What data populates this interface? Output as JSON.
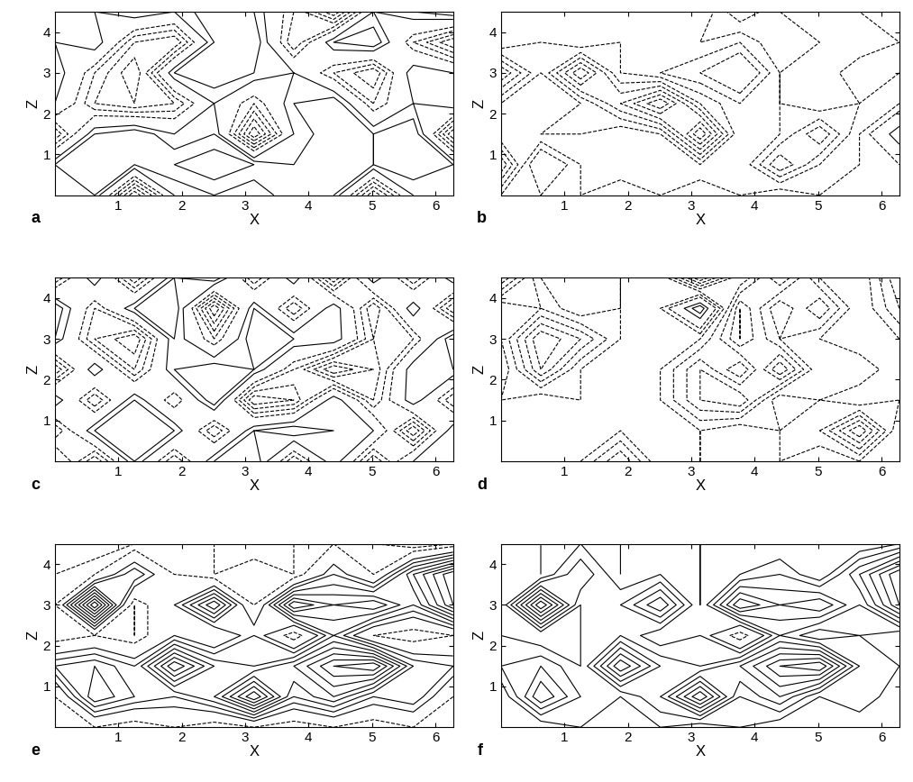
{
  "chart_data": [
    {
      "type": "contour",
      "title": "a",
      "xlabel": "X",
      "ylabel": "Z",
      "xlim": [
        0,
        6.28
      ],
      "ylim": [
        0,
        4.5
      ],
      "xticks": [
        1,
        2,
        3,
        4,
        5,
        6
      ],
      "yticks": [
        1,
        2,
        3,
        4
      ],
      "color": "#000000",
      "line_style": "dashed",
      "x": [
        0,
        0.628,
        1.256,
        1.884,
        2.512,
        3.14,
        3.768,
        4.396,
        5.024,
        5.652,
        6.28
      ],
      "y": [
        0,
        0.75,
        1.5,
        2.25,
        3.0,
        3.75,
        4.5
      ],
      "levels": [
        -0.9,
        -0.8,
        -0.7,
        -0.6,
        -0.5,
        -0.4,
        -0.3,
        -0.2,
        -0.1,
        0.1,
        0.2,
        0.3,
        0.4,
        0.5,
        0.6,
        0.7,
        0.8,
        0.9
      ],
      "values": [
        [
          0.1,
          0.2,
          -0.6,
          0.1,
          0.2,
          0.1,
          0.3,
          0.2,
          -0.5,
          0.1,
          0.2
        ],
        [
          0.2,
          0.3,
          0.2,
          0.3,
          0.4,
          0.3,
          0.2,
          0.3,
          0.2,
          0.3,
          0.2
        ],
        [
          -0.4,
          0.2,
          0.3,
          0.1,
          0.2,
          -0.6,
          0.1,
          0.3,
          0.2,
          0.3,
          -0.5
        ],
        [
          0.1,
          -0.3,
          -0.4,
          -0.3,
          0.1,
          -0.2,
          0.2,
          0.3,
          -0.2,
          0.1,
          0.2
        ],
        [
          0.2,
          -0.2,
          -0.5,
          0.2,
          0.3,
          0.2,
          0.1,
          -0.2,
          -0.4,
          0.2,
          0.1
        ],
        [
          0.1,
          0.2,
          -0.3,
          -0.4,
          0.2,
          0.3,
          -0.3,
          0.2,
          0.3,
          -0.2,
          -0.5
        ],
        [
          0.2,
          0.1,
          0.2,
          0.1,
          0.3,
          0.2,
          -0.2,
          -0.6,
          0.1,
          0.2,
          0.3
        ]
      ]
    },
    {
      "type": "contour",
      "title": "b",
      "xlabel": "X",
      "ylabel": "Z",
      "xlim": [
        0,
        6.28
      ],
      "ylim": [
        0,
        4.5
      ],
      "xticks": [
        1,
        2,
        3,
        4,
        5,
        6
      ],
      "yticks": [
        1,
        2,
        3,
        4
      ],
      "color": "#000000",
      "line_style": "dashed",
      "x": [
        0,
        0.628,
        1.256,
        1.884,
        2.512,
        3.14,
        3.768,
        4.396,
        5.024,
        5.652,
        6.28
      ],
      "y": [
        0,
        0.75,
        1.5,
        2.25,
        3.0,
        3.75,
        4.5
      ],
      "levels": [
        -0.9,
        -0.8,
        -0.7,
        -0.6,
        -0.5,
        -0.4,
        -0.3,
        -0.2,
        -0.1,
        0.1,
        0.2,
        0.3,
        0.4,
        0.5,
        0.6,
        0.7,
        0.8,
        0.9
      ],
      "values": [
        [
          -0.2,
          -0.1,
          -0.2,
          -0.1,
          -0.2,
          -0.1,
          -0.2,
          -0.1,
          -0.2,
          -0.1,
          -0.2
        ],
        [
          -0.6,
          0.1,
          -0.2,
          -0.3,
          -0.2,
          -0.3,
          -0.2,
          -0.6,
          -0.3,
          -0.2,
          -0.1
        ],
        [
          -0.2,
          -0.3,
          -0.3,
          -0.2,
          -0.3,
          -0.9,
          -0.2,
          -0.3,
          -0.6,
          -0.2,
          0.2
        ],
        [
          -0.3,
          -0.2,
          -0.3,
          -0.6,
          -0.9,
          -0.4,
          -0.2,
          -0.3,
          -0.2,
          -0.3,
          -0.2
        ],
        [
          -0.7,
          -0.3,
          -0.8,
          -0.3,
          -0.2,
          -0.1,
          0.1,
          -0.3,
          -0.2,
          -0.4,
          -0.3
        ],
        [
          -0.2,
          -0.3,
          -0.2,
          -0.3,
          -0.2,
          -0.3,
          -0.2,
          -0.4,
          -0.3,
          -0.2,
          -0.3
        ],
        [
          -0.3,
          -0.2,
          -0.3,
          -0.2,
          -0.3,
          -0.2,
          -0.5,
          -0.3,
          -0.2,
          -0.3,
          -0.4
        ]
      ]
    },
    {
      "type": "contour",
      "title": "c",
      "xlabel": "X",
      "ylabel": "Z",
      "xlim": [
        0,
        6.28
      ],
      "ylim": [
        0,
        4.5
      ],
      "xticks": [
        1,
        2,
        3,
        4,
        5,
        6
      ],
      "yticks": [
        1,
        2,
        3,
        4
      ],
      "color": "#000000",
      "line_style": "dashed",
      "x": [
        0,
        0.628,
        1.256,
        1.884,
        2.512,
        3.14,
        3.768,
        4.396,
        5.024,
        5.652,
        6.28
      ],
      "y": [
        0,
        0.75,
        1.5,
        2.25,
        3.0,
        3.75,
        4.5
      ],
      "levels": [
        -0.9,
        -0.8,
        -0.7,
        -0.6,
        -0.5,
        -0.4,
        -0.3,
        -0.2,
        -0.1,
        0.1,
        0.2,
        0.3,
        0.4,
        0.5,
        0.6,
        0.7,
        0.8,
        0.9
      ],
      "values": [
        [
          0.1,
          -0.4,
          0.2,
          -0.3,
          0.2,
          0.3,
          -0.3,
          0.2,
          -0.4,
          0.1,
          0.2
        ],
        [
          -0.3,
          0.2,
          0.3,
          0.2,
          -0.3,
          0.2,
          0.3,
          0.2,
          0.1,
          -0.5,
          0.2
        ],
        [
          0.2,
          -0.3,
          0.2,
          -0.2,
          0.3,
          -0.5,
          -0.4,
          0.2,
          -0.3,
          0.2,
          -0.3
        ],
        [
          -0.4,
          0.2,
          -0.3,
          0.2,
          0.3,
          0.2,
          -0.2,
          -0.6,
          -0.4,
          0.2,
          0.2
        ],
        [
          0.2,
          -0.3,
          -0.5,
          0.2,
          -0.2,
          0.3,
          0.2,
          0.2,
          -0.3,
          -0.2,
          0.3
        ],
        [
          0.3,
          -0.2,
          0.2,
          0.3,
          -0.6,
          0.2,
          -0.3,
          0.2,
          -0.4,
          0.2,
          -0.4
        ],
        [
          -0.3,
          0.2,
          -0.4,
          0.2,
          0.3,
          -0.3,
          0.2,
          -0.5,
          0.2,
          -0.3,
          0.2
        ]
      ]
    },
    {
      "type": "contour",
      "title": "d",
      "xlabel": "X",
      "ylabel": "Z",
      "xlim": [
        0,
        6.28
      ],
      "ylim": [
        0,
        4.5
      ],
      "xticks": [
        1,
        2,
        3,
        4,
        5,
        6
      ],
      "yticks": [
        1,
        2,
        3,
        4
      ],
      "color": "#000000",
      "line_style": "dashed",
      "x": [
        0,
        0.628,
        1.256,
        1.884,
        2.512,
        3.14,
        3.768,
        4.396,
        5.024,
        5.652,
        6.28
      ],
      "y": [
        0,
        0.75,
        1.5,
        2.25,
        3.0,
        3.75,
        4.5
      ],
      "levels": [
        -0.9,
        -0.8,
        -0.7,
        -0.6,
        -0.5,
        -0.4,
        -0.3,
        -0.2,
        -0.1,
        0.1,
        0.2,
        0.3,
        0.4,
        0.5,
        0.6,
        0.7,
        0.8,
        0.9
      ],
      "values": [
        [
          -0.3,
          -0.2,
          -0.3,
          -0.6,
          -0.2,
          -0.3,
          -0.2,
          -0.3,
          -0.2,
          -0.3,
          -0.2
        ],
        [
          -0.2,
          -0.3,
          -0.2,
          -0.3,
          -0.2,
          -0.3,
          -0.2,
          -0.3,
          -0.4,
          -0.8,
          -0.2
        ],
        [
          -0.3,
          -0.2,
          -0.3,
          -0.2,
          -0.3,
          -0.6,
          -0.7,
          -0.2,
          -0.3,
          -0.2,
          -0.3
        ],
        [
          -0.2,
          -0.7,
          -0.3,
          -0.2,
          -0.3,
          -0.6,
          -0.3,
          -0.8,
          -0.3,
          -0.4,
          -0.2
        ],
        [
          -0.3,
          -0.8,
          -0.6,
          -0.3,
          -0.2,
          -0.3,
          -0.7,
          -0.4,
          -0.3,
          -0.2,
          -0.3
        ],
        [
          -0.3,
          -0.4,
          -0.2,
          -0.3,
          -0.2,
          0.3,
          -0.7,
          -0.3,
          -0.6,
          -0.2,
          -0.5
        ],
        [
          -0.8,
          -0.3,
          -0.2,
          -0.3,
          -0.2,
          -0.8,
          -0.3,
          -0.7,
          -0.3,
          -0.2,
          -0.6
        ]
      ]
    },
    {
      "type": "contour",
      "title": "e",
      "xlabel": "X",
      "ylabel": "Z",
      "xlim": [
        0,
        6.28
      ],
      "ylim": [
        0,
        4.5
      ],
      "xticks": [
        1,
        2,
        3,
        4,
        5,
        6
      ],
      "yticks": [
        1,
        2,
        3,
        4
      ],
      "color": "#000000",
      "line_style": "dashed",
      "x": [
        0,
        0.628,
        1.256,
        1.884,
        2.512,
        3.14,
        3.768,
        4.396,
        5.024,
        5.652,
        6.28
      ],
      "y": [
        0,
        0.75,
        1.5,
        2.25,
        3.0,
        3.75,
        4.5
      ],
      "levels": [
        -0.9,
        -0.8,
        -0.7,
        -0.6,
        -0.5,
        -0.4,
        -0.3,
        -0.2,
        -0.1,
        0.1,
        0.2,
        0.3,
        0.4,
        0.5,
        0.6,
        0.7,
        0.8,
        0.9
      ],
      "values": [
        [
          -0.2,
          -0.1,
          -0.2,
          -0.1,
          -0.2,
          -0.1,
          -0.2,
          -0.1,
          -0.2,
          -0.1,
          -0.2
        ],
        [
          -0.1,
          0.5,
          0.3,
          0.2,
          0.4,
          0.9,
          0.3,
          0.5,
          0.2,
          0.3,
          -0.1
        ],
        [
          0.3,
          0.4,
          0.2,
          0.8,
          0.4,
          0.3,
          0.5,
          0.8,
          0.9,
          0.3,
          0.2
        ],
        [
          -0.2,
          -0.1,
          -0.2,
          0.1,
          -0.1,
          0.2,
          -0.2,
          0.3,
          -0.1,
          -0.2,
          -0.1
        ],
        [
          -0.1,
          0.9,
          -0.2,
          0.1,
          0.6,
          -0.1,
          0.7,
          0.5,
          0.6,
          0.3,
          0.8
        ],
        [
          -0.2,
          -0.1,
          0.3,
          -0.1,
          -0.2,
          -0.1,
          -0.2,
          0.2,
          -0.1,
          0.5,
          0.9
        ],
        [
          -0.2,
          -0.3,
          -0.2,
          -0.1,
          -0.2,
          -0.3,
          -0.2,
          -0.1,
          -0.2,
          -0.3,
          -0.2
        ]
      ]
    },
    {
      "type": "contour",
      "title": "f",
      "xlabel": "X",
      "ylabel": "Z",
      "xlim": [
        0,
        6.28
      ],
      "ylim": [
        0,
        4.5
      ],
      "xticks": [
        1,
        2,
        3,
        4,
        5,
        6
      ],
      "yticks": [
        1,
        2,
        3,
        4
      ],
      "color": "#000000",
      "line_style": "dashed",
      "x": [
        0,
        0.628,
        1.256,
        1.884,
        2.512,
        3.14,
        3.768,
        4.396,
        5.024,
        5.652,
        6.28
      ],
      "y": [
        0,
        0.75,
        1.5,
        2.25,
        3.0,
        3.75,
        4.5
      ],
      "levels": [
        -0.9,
        -0.8,
        -0.7,
        -0.6,
        -0.5,
        -0.4,
        -0.3,
        -0.2,
        -0.1,
        0.1,
        0.2,
        0.3,
        0.4,
        0.5,
        0.6,
        0.7,
        0.8,
        0.9
      ],
      "values": [
        [
          0.2,
          0.1,
          0.2,
          0.1,
          0.2,
          0.1,
          0.2,
          0.1,
          0.2,
          0.1,
          0.2
        ],
        [
          0.1,
          0.6,
          0.3,
          0.2,
          0.4,
          0.9,
          0.3,
          0.5,
          0.2,
          0.3,
          0.1
        ],
        [
          0.3,
          0.4,
          0.2,
          0.8,
          0.4,
          0.3,
          0.5,
          0.8,
          0.9,
          0.3,
          0.2
        ],
        [
          0.2,
          0.1,
          0.2,
          0.3,
          0.1,
          0.2,
          -0.2,
          0.3,
          0.1,
          0.2,
          0.1
        ],
        [
          0.1,
          0.9,
          0.2,
          0.3,
          0.6,
          0.1,
          0.7,
          0.5,
          0.6,
          0.3,
          0.8
        ],
        [
          0.2,
          0.1,
          0.4,
          0.1,
          0.2,
          0.1,
          0.2,
          0.3,
          0.1,
          0.5,
          0.9
        ],
        [
          0.2,
          0.1,
          0.2,
          0.1,
          0.2,
          0.1,
          0.2,
          0.1,
          0.2,
          0.1,
          0.2
        ]
      ]
    }
  ]
}
